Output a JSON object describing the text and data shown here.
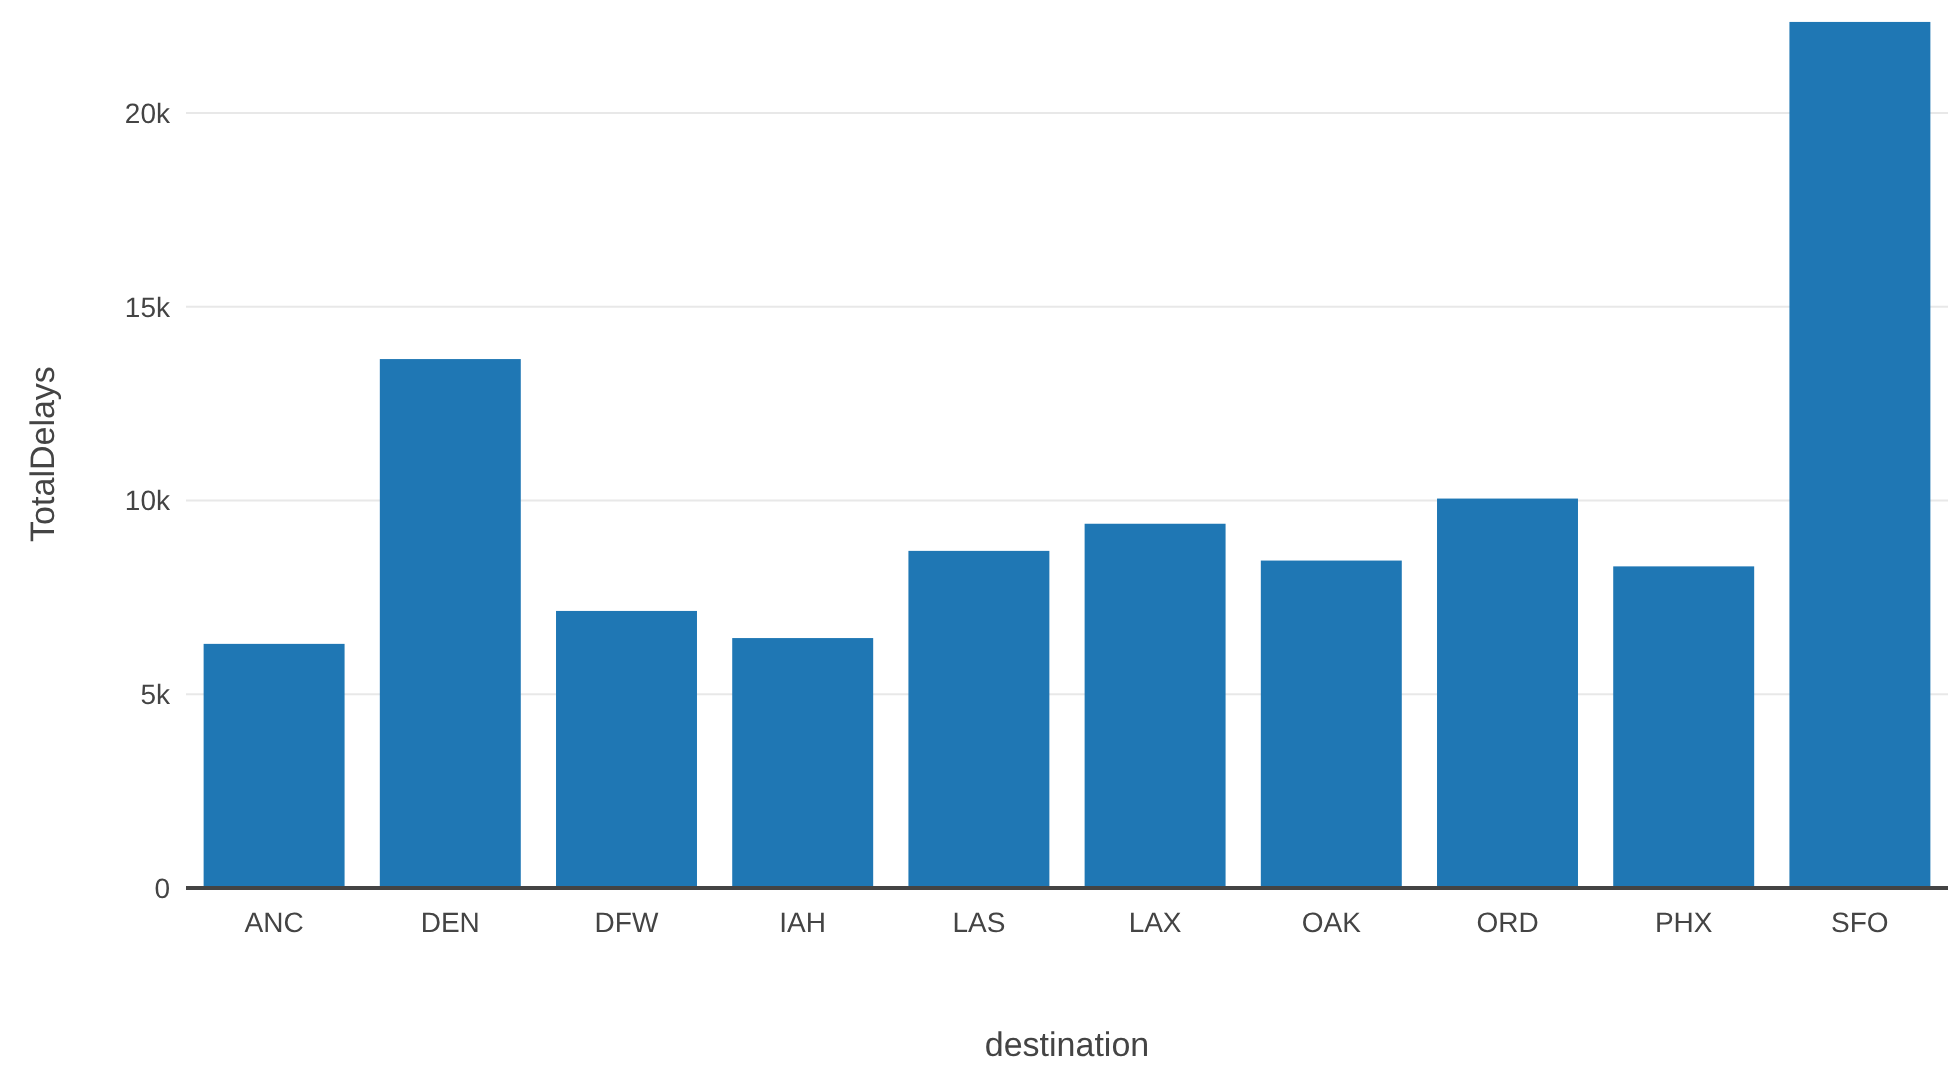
{
  "chart_data": {
    "type": "bar",
    "xlabel": "destination",
    "ylabel": "TotalDelays",
    "categories": [
      "ANC",
      "DEN",
      "DFW",
      "IAH",
      "LAS",
      "LAX",
      "OAK",
      "ORD",
      "PHX",
      "SFO"
    ],
    "values": [
      6300,
      13650,
      7150,
      6450,
      8700,
      9400,
      8450,
      10050,
      8300,
      22350
    ],
    "color": "#1f77b4",
    "ylim": [
      0,
      22400
    ],
    "yticks": [
      0,
      {
        "value": 5000,
        "label": "5k"
      },
      {
        "value": 10000,
        "label": "10k"
      },
      {
        "value": 15000,
        "label": "15k"
      },
      {
        "value": 20000,
        "label": "20k"
      }
    ],
    "grid": "y"
  }
}
